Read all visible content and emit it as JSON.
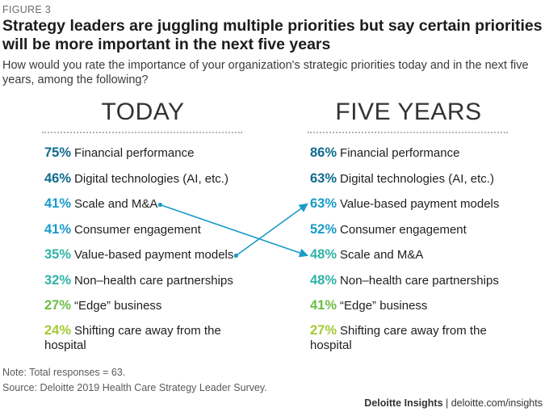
{
  "figure_label": "FIGURE 3",
  "title": "Strategy leaders are juggling multiple priorities but say certain priorities will be more important in the next five years",
  "subtitle": "How would you rate the importance of your organization's strategic priorities today and in the next five years, among the following?",
  "notes": {
    "note": "Note: Total responses = 63.",
    "source": "Source: Deloitte 2019 Health Care Strategy Leader Survey."
  },
  "credit": {
    "brand": "Deloitte Insights",
    "separator": " | ",
    "site": "deloitte.com/insights"
  },
  "chart_data": {
    "type": "table",
    "columns": [
      "TODAY",
      "FIVE YEARS"
    ],
    "today": [
      {
        "value": "75%",
        "label": "Financial performance",
        "color": "#0f6b8e"
      },
      {
        "value": "46%",
        "label": "Digital technologies (AI, etc.)",
        "color": "#0f6b8e"
      },
      {
        "value": "41%",
        "label": "Scale and M&A",
        "color": "#1a9bc8"
      },
      {
        "value": "41%",
        "label": "Consumer engagement",
        "color": "#1a9bc8"
      },
      {
        "value": "35%",
        "label": "Value-based payment models",
        "color": "#2fb3a7"
      },
      {
        "value": "32%",
        "label": "Non–health care partnerships",
        "color": "#2fb3a7"
      },
      {
        "value": "27%",
        "label": "“Edge” business",
        "color": "#6cbe45"
      },
      {
        "value": "24%",
        "label": "Shifting care away from the hospital",
        "color": "#a5c935"
      }
    ],
    "five_years": [
      {
        "value": "86%",
        "label": "Financial performance",
        "color": "#0f6b8e"
      },
      {
        "value": "63%",
        "label": "Digital technologies (AI, etc.)",
        "color": "#0f6b8e"
      },
      {
        "value": "63%",
        "label": "Value-based payment models",
        "color": "#1a9bc8"
      },
      {
        "value": "52%",
        "label": "Consumer engagement",
        "color": "#1a9bc8"
      },
      {
        "value": "48%",
        "label": "Scale and M&A",
        "color": "#2fb3a7"
      },
      {
        "value": "48%",
        "label": "Non–health care partnerships",
        "color": "#2fb3a7"
      },
      {
        "value": "41%",
        "label": "“Edge” business",
        "color": "#6cbe45"
      },
      {
        "value": "27%",
        "label": "Shifting care away from the hospital",
        "color": "#a5c935"
      }
    ],
    "arrows": [
      {
        "from": "Scale and M&A",
        "to": "Scale and M&A",
        "color": "#1a9bc8"
      },
      {
        "from": "Value-based payment models",
        "to": "Value-based payment models",
        "color": "#1a9bc8"
      }
    ]
  }
}
